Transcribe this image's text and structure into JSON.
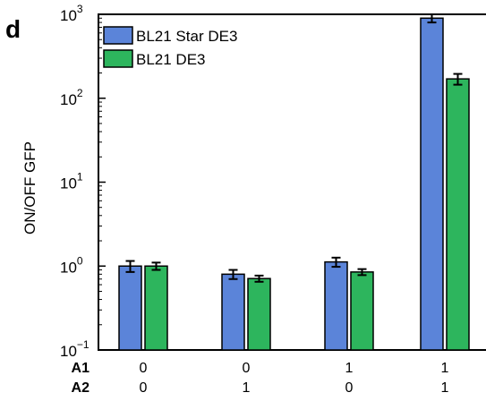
{
  "panel_label": "d",
  "chart_data": {
    "type": "bar",
    "yscale": "log",
    "ylabel": "ON/OFF GFP",
    "ylim": [
      0.1,
      1000
    ],
    "yticks": [
      {
        "value": 1000,
        "base": "10",
        "exp": "3"
      },
      {
        "value": 100,
        "base": "10",
        "exp": "2"
      },
      {
        "value": 10,
        "base": "10",
        "exp": "1"
      },
      {
        "value": 1,
        "base": "10",
        "exp": "0"
      },
      {
        "value": 0.1,
        "base": "10",
        "exp": "−1"
      }
    ],
    "row_labels": [
      "A1",
      "A2"
    ],
    "categories": [
      {
        "A1": "0",
        "A2": "0"
      },
      {
        "A1": "0",
        "A2": "1"
      },
      {
        "A1": "1",
        "A2": "0"
      },
      {
        "A1": "1",
        "A2": "1"
      }
    ],
    "series": [
      {
        "name": "BL21 Star DE3",
        "color": "#5b84d9",
        "values": [
          1.0,
          0.8,
          1.12,
          900
        ],
        "err": [
          0.15,
          0.1,
          0.14,
          100
        ]
      },
      {
        "name": "BL21 DE3",
        "color": "#2db55d",
        "values": [
          1.0,
          0.71,
          0.85,
          170
        ],
        "err": [
          0.1,
          0.06,
          0.07,
          25
        ]
      }
    ],
    "legend_position": "top-left",
    "grid": false
  }
}
